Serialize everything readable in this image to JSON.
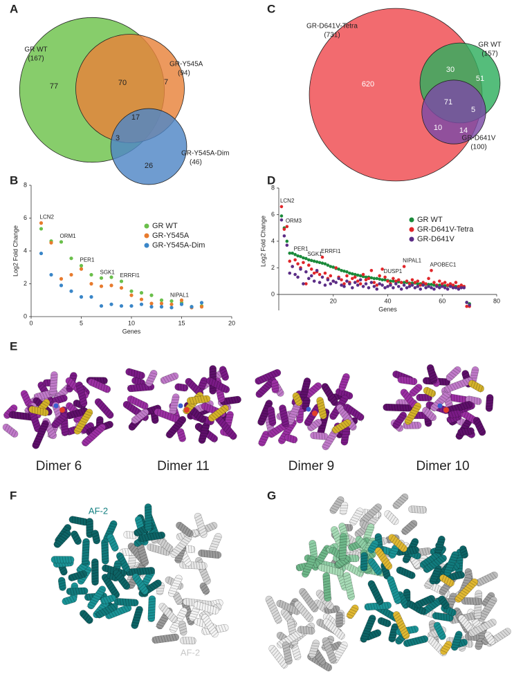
{
  "panel_labels": [
    "A",
    "B",
    "C",
    "D",
    "E",
    "F",
    "G"
  ],
  "chart_data": [
    {
      "type": "venn",
      "sets": [
        {
          "name": "GR WT",
          "color": "#6cc24a"
        },
        {
          "name": "GR-Y545A",
          "color": "#e8823a"
        },
        {
          "name": "GR-Y545A-Dim",
          "color": "#4f86c6"
        }
      ],
      "values": [
        167,
        94,
        46
      ],
      "value_labels": [
        "(167)",
        "(94)",
        "(46)"
      ],
      "regions": [
        77,
        70,
        7,
        17,
        3,
        26
      ]
    },
    {
      "type": "scatter",
      "x_label": "Genes",
      "y_label": "Log2 Fold Change",
      "x": [
        1,
        2,
        3,
        4,
        5,
        6,
        7,
        8,
        9,
        10,
        11,
        12,
        13,
        14,
        15,
        16,
        17
      ],
      "series": [
        {
          "name": "GR WT",
          "color": "#6abf4b",
          "values": [
            5.35,
            4.6,
            4.55,
            3.55,
            3.1,
            2.55,
            2.35,
            2.4,
            2.15,
            1.55,
            1.45,
            1.3,
            1.0,
            0.95,
            0.85,
            0.6,
            0.65
          ]
        },
        {
          "name": "GR-Y545A",
          "color": "#e87b2e",
          "values": [
            5.7,
            4.5,
            2.3,
            2.55,
            2.9,
            2.0,
            1.85,
            1.9,
            1.75,
            1.3,
            1.05,
            0.8,
            0.8,
            0.75,
            1.0,
            0.55,
            0.6
          ]
        },
        {
          "name": "GR-Y545A-Dim",
          "color": "#3a86c8",
          "values": [
            3.85,
            2.55,
            1.9,
            1.55,
            1.2,
            1.2,
            0.65,
            0.75,
            0.65,
            0.65,
            0.75,
            0.6,
            0.6,
            0.55,
            0.75,
            0.6,
            0.85
          ]
        }
      ],
      "annotations": [
        "LCN2",
        "ORM1",
        "PER1",
        "SGK1",
        "ERRFI1",
        "NIPAL1"
      ],
      "xlim": [
        0,
        20
      ],
      "xticks": [
        0,
        5,
        10,
        15,
        20
      ],
      "ylim": [
        0,
        8
      ],
      "yticks": [
        0,
        2,
        4,
        6,
        8
      ],
      "legend": "upper right"
    },
    {
      "type": "venn",
      "sets": [
        {
          "name": "GR-D641V-Tetra",
          "color": "#ef4a4f"
        },
        {
          "name": "GR WT",
          "color": "#2fae5e"
        },
        {
          "name": "GR-D641V",
          "color": "#7b4aa6"
        }
      ],
      "values": [
        731,
        157,
        100
      ],
      "value_labels": [
        "(731)",
        "(157)",
        "(100)"
      ],
      "regions": [
        620,
        30,
        51,
        71,
        5,
        10,
        14
      ]
    },
    {
      "type": "scatter",
      "x_label": "Genes",
      "y_label": "Log2 Fold Change",
      "x": [
        1,
        2,
        3,
        4,
        5,
        6,
        7,
        8,
        9,
        10,
        11,
        12,
        13,
        14,
        15,
        16,
        17,
        18,
        19,
        20,
        21,
        22,
        23,
        24,
        25,
        26,
        27,
        28,
        29,
        30,
        31,
        32,
        33,
        34,
        35,
        36,
        37,
        38,
        39,
        40,
        41,
        42,
        43,
        44,
        45,
        46,
        47,
        48,
        49,
        50,
        51,
        52,
        53,
        54,
        55,
        56,
        57,
        58,
        59,
        60,
        61,
        62,
        63,
        64,
        65,
        66,
        67,
        68,
        69,
        70
      ],
      "series": [
        {
          "name": "GR WT",
          "color": "#1a8a3a",
          "values": [
            5.9,
            5.0,
            4.0,
            3.1,
            3.1,
            3.0,
            2.9,
            2.85,
            2.75,
            2.7,
            2.6,
            2.55,
            2.5,
            2.45,
            2.4,
            2.35,
            2.3,
            2.2,
            2.1,
            2.05,
            1.95,
            1.9,
            1.8,
            1.75,
            1.7,
            1.6,
            1.55,
            1.5,
            1.45,
            1.4,
            1.35,
            1.3,
            1.3,
            1.25,
            1.2,
            1.2,
            1.15,
            1.1,
            1.1,
            1.05,
            1.0,
            1.0,
            0.95,
            0.95,
            0.9,
            0.9,
            0.9,
            0.85,
            0.85,
            0.85,
            0.8,
            0.8,
            0.8,
            0.75,
            0.75,
            0.75,
            0.7,
            0.7,
            0.7,
            0.7,
            0.65,
            0.65,
            0.65,
            0.65,
            0.6,
            0.6,
            0.6,
            0.6,
            -0.6,
            -0.7
          ]
        },
        {
          "name": "GR-D641V-Tetra",
          "color": "#e0262a",
          "values": [
            6.6,
            4.9,
            5.1,
            2.5,
            2.1,
            2.6,
            2.3,
            2.0,
            2.4,
            0.8,
            2.2,
            1.9,
            1.6,
            1.7,
            1.5,
            2.8,
            1.6,
            1.2,
            1.4,
            1.0,
            2.0,
            1.3,
            1.1,
            0.8,
            1.4,
            0.9,
            1.2,
            1.3,
            1.0,
            0.8,
            1.5,
            1.1,
            1.2,
            1.8,
            0.9,
            0.7,
            1.4,
            1.9,
            1.3,
            1.0,
            0.8,
            1.2,
            1.0,
            1.1,
            0.9,
            2.1,
            1.0,
            0.8,
            1.1,
            0.9,
            1.0,
            0.7,
            0.9,
            0.8,
            1.2,
            1.8,
            0.9,
            0.7,
            1.0,
            0.8,
            0.9,
            0.7,
            0.8,
            0.7,
            0.9,
            0.6,
            0.7,
            0.6,
            -0.9,
            -0.9
          ]
        },
        {
          "name": "GR-D641V",
          "color": "#5b2d86",
          "values": [
            5.6,
            4.4,
            3.7,
            1.6,
            2.1,
            1.5,
            1.3,
            1.9,
            0.8,
            1.7,
            1.2,
            1.4,
            1.0,
            1.8,
            0.9,
            1.3,
            0.7,
            1.1,
            0.8,
            1.0,
            0.9,
            1.2,
            0.7,
            0.6,
            1.0,
            0.8,
            0.5,
            0.9,
            0.7,
            1.1,
            0.6,
            0.8,
            0.5,
            0.9,
            0.6,
            0.4,
            0.8,
            0.7,
            0.5,
            0.6,
            0.7,
            0.5,
            0.8,
            0.6,
            0.4,
            0.7,
            0.5,
            0.6,
            0.7,
            0.5,
            0.6,
            0.4,
            0.7,
            0.5,
            0.6,
            0.5,
            0.4,
            0.6,
            0.5,
            0.6,
            0.5,
            0.4,
            0.6,
            0.5,
            0.5,
            0.4,
            0.5,
            0.5,
            -0.6,
            -0.8
          ]
        }
      ],
      "annotations": [
        "LCN2",
        "ORM3",
        "PER1",
        "SGK1",
        "ERRFI1",
        "DUSP1",
        "NIPAL1",
        "APOBEC1"
      ],
      "xlim": [
        0,
        80
      ],
      "xticks": [
        20,
        40,
        60,
        80
      ],
      "ylim": [
        -1.2,
        8
      ],
      "yticks": [
        0,
        2,
        4,
        6,
        8
      ],
      "legend": "upper right"
    }
  ],
  "dimers": [
    "Dimer 6",
    "Dimer 11",
    "Dimer 9",
    "Dimer 10"
  ],
  "af2_labels": [
    "AF-2",
    "AF-2"
  ]
}
